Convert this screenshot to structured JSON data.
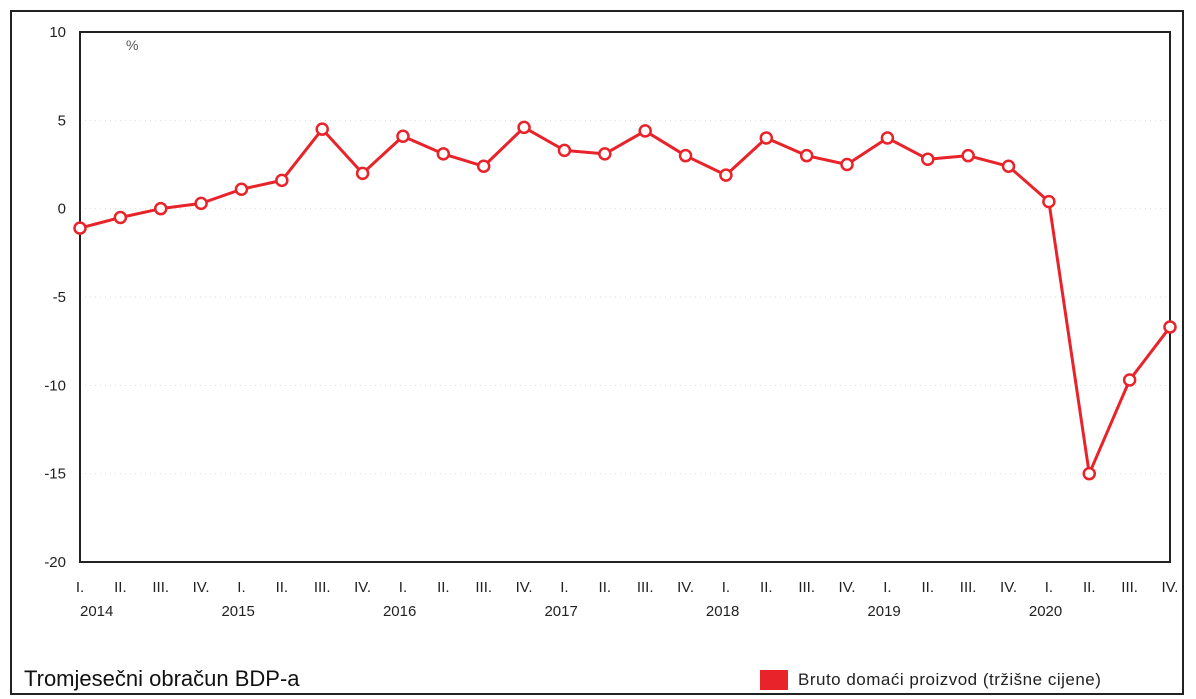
{
  "footer": {
    "title": "Tromjesečni obračun BDP-a",
    "legend_label": "Bruto domaći proizvod (tržišne cijene)"
  },
  "chart_data": {
    "type": "line",
    "unit_label": "%",
    "ylim": [
      -20,
      10
    ],
    "yticks": [
      "10",
      "5",
      "0",
      "-5",
      "-10",
      "-15",
      "-20"
    ],
    "ytick_values": [
      10,
      5,
      0,
      -5,
      -10,
      -15,
      -20
    ],
    "quarters": [
      "I.",
      "II.",
      "III.",
      "IV.",
      "I.",
      "II.",
      "III.",
      "IV.",
      "I.",
      "II.",
      "III.",
      "IV.",
      "I.",
      "II.",
      "III.",
      "IV.",
      "I.",
      "II.",
      "III.",
      "IV.",
      "I.",
      "II.",
      "III.",
      "IV.",
      "I.",
      "II.",
      "III.",
      "IV."
    ],
    "years": [
      "2014",
      "2015",
      "2016",
      "2017",
      "2018",
      "2019",
      "2020"
    ],
    "series": [
      {
        "name": "Bruto domaći proizvod (tržišne cijene)",
        "color": "#e8232a",
        "values": [
          -1.1,
          -0.5,
          0.0,
          0.3,
          1.1,
          1.6,
          4.5,
          2.0,
          4.1,
          3.1,
          2.4,
          4.6,
          3.3,
          3.1,
          4.4,
          3.0,
          1.9,
          4.0,
          3.0,
          2.5,
          4.0,
          2.8,
          3.0,
          2.4,
          0.4,
          -15.0,
          -9.7,
          -6.7
        ]
      }
    ],
    "grid": true
  }
}
